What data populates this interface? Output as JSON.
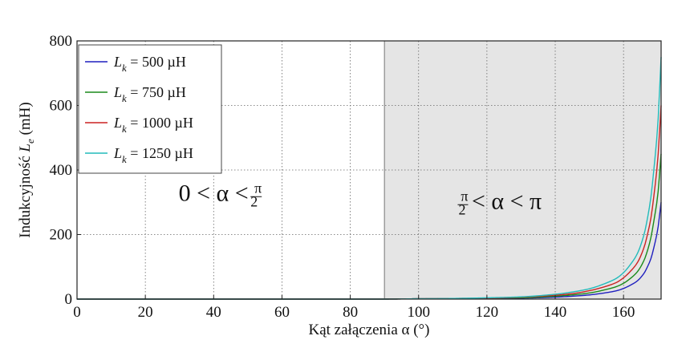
{
  "chart_data": {
    "type": "line",
    "title": "",
    "xlabel": "Kąt załączenia α (°)",
    "ylabel": "Indukcyjność Le (mH)",
    "xlim": [
      0,
      171
    ],
    "ylim": [
      0,
      800
    ],
    "x_ticks": [
      "0",
      "20",
      "40",
      "60",
      "80",
      "100",
      "120",
      "140",
      "160"
    ],
    "y_ticks": [
      "0",
      "200",
      "400",
      "600",
      "800"
    ],
    "grid": true,
    "legend_position": "top-left",
    "shaded_region": {
      "x_from": 90,
      "x_to": 171,
      "color": "#e5e5e5"
    },
    "annotations": [
      {
        "text": "0 < α < π/2",
        "x": 45,
        "y": 300
      },
      {
        "text": "π/2 < α < π",
        "x": 130,
        "y": 300
      }
    ],
    "x": [
      0,
      20,
      40,
      60,
      80,
      90,
      100,
      110,
      120,
      130,
      140,
      145,
      150,
      155,
      158,
      160,
      162,
      164,
      166,
      167,
      168,
      169,
      170,
      171
    ],
    "series": [
      {
        "name": "L_k = 500 µH",
        "color": "#1f1fbf",
        "values": [
          0,
          0,
          0,
          0,
          0,
          0,
          1,
          1,
          2,
          3,
          6,
          9,
          13,
          20,
          26,
          33,
          43,
          56,
          80,
          100,
          125,
          165,
          215,
          300
        ]
      },
      {
        "name": "L_k = 750 µH",
        "color": "#1a8a1a",
        "values": [
          0,
          0,
          0,
          0,
          0,
          0,
          1,
          1,
          3,
          4,
          9,
          13,
          19,
          30,
          39,
          49,
          64,
          84,
          120,
          150,
          190,
          250,
          320,
          450
        ]
      },
      {
        "name": "L_k = 1000 µH",
        "color": "#cc2222",
        "values": [
          0,
          0,
          0,
          0,
          0,
          0,
          1,
          2,
          3,
          6,
          12,
          17,
          26,
          40,
          52,
          66,
          86,
          112,
          160,
          200,
          250,
          330,
          430,
          600
        ]
      },
      {
        "name": "L_k = 1250 µH",
        "color": "#22bbbb",
        "values": [
          0,
          0,
          0,
          0,
          0,
          0,
          1,
          2,
          4,
          7,
          15,
          22,
          32,
          50,
          65,
          82,
          107,
          140,
          200,
          250,
          315,
          415,
          535,
          750
        ]
      }
    ]
  }
}
